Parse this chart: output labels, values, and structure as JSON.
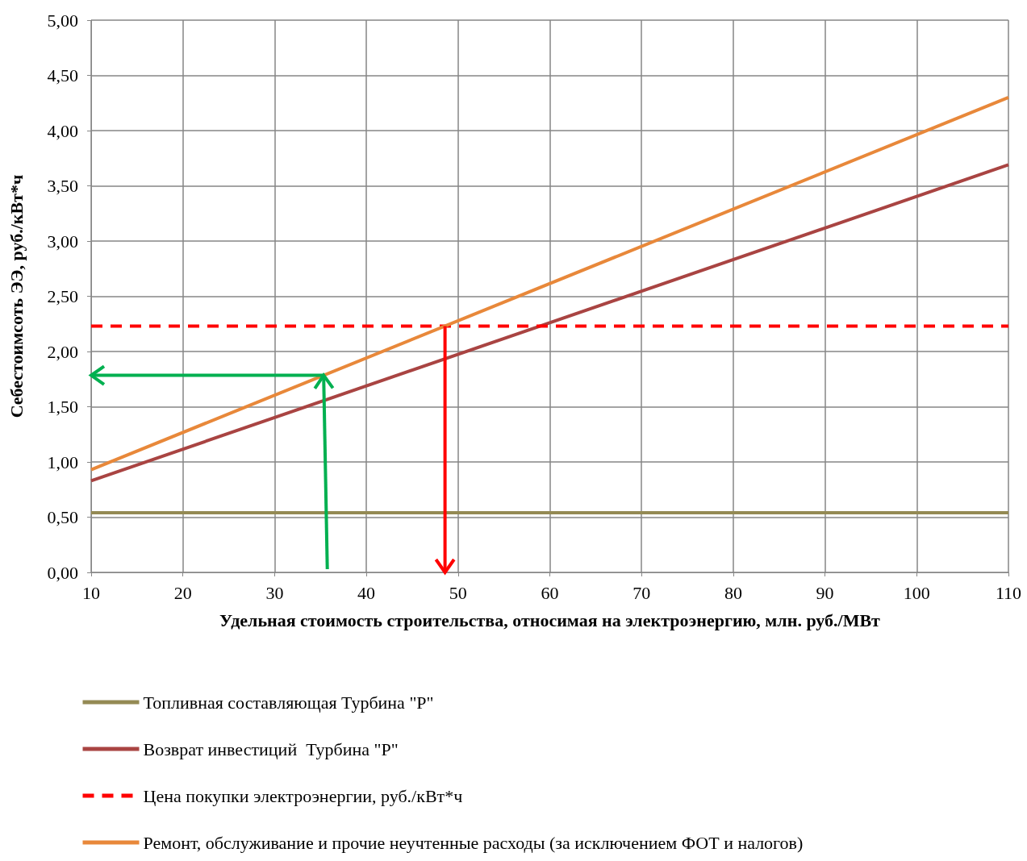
{
  "chart_data": {
    "type": "line",
    "xlabel": "Удельная стоимость строительства, относимая на электроэнергию, млн. руб./МВт",
    "ylabel": "Себестоимсоть ЭЭ, руб./кВт*ч",
    "xlim": [
      10,
      110
    ],
    "xticks": [
      10,
      20,
      30,
      40,
      50,
      60,
      70,
      80,
      90,
      100,
      110
    ],
    "ylim": [
      0,
      5
    ],
    "yticks": [
      {
        "value": 0,
        "label": "0,00"
      },
      {
        "value": 0.5,
        "label": "0,50"
      },
      {
        "value": 1,
        "label": "1,00"
      },
      {
        "value": 1.5,
        "label": "1,50"
      },
      {
        "value": 2,
        "label": "2,00"
      },
      {
        "value": 2.5,
        "label": "2,50"
      },
      {
        "value": 3,
        "label": "3,00"
      },
      {
        "value": 3.5,
        "label": "3,50"
      },
      {
        "value": 4,
        "label": "4,00"
      },
      {
        "value": 4.5,
        "label": "4,50"
      },
      {
        "value": 5,
        "label": "5,00"
      }
    ],
    "x": [
      10,
      110
    ],
    "grid": true,
    "legend": "bottom",
    "marker": "none",
    "line_style": "solid",
    "series": [
      {
        "name": "Топливная составляющая Турбина \"Р\"",
        "color": "#948a54",
        "values": [
          0.54,
          0.54
        ]
      },
      {
        "name": "Возврат инвестиций  Турбина \"Р\"",
        "color": "#a94442",
        "values": [
          0.83,
          3.69
        ]
      },
      {
        "name": "Цена покупки электроэнергии, руб./кВт*ч",
        "color": "#ff0000",
        "values": [
          2.23,
          2.23
        ],
        "line_style": "dashed"
      },
      {
        "name": "Ремонт, обслуживание и прочие неучтенные расходы (за исключением ФОТ и налогов)",
        "color": "#e8883a",
        "values": [
          0.93,
          4.3
        ]
      }
    ]
  }
}
